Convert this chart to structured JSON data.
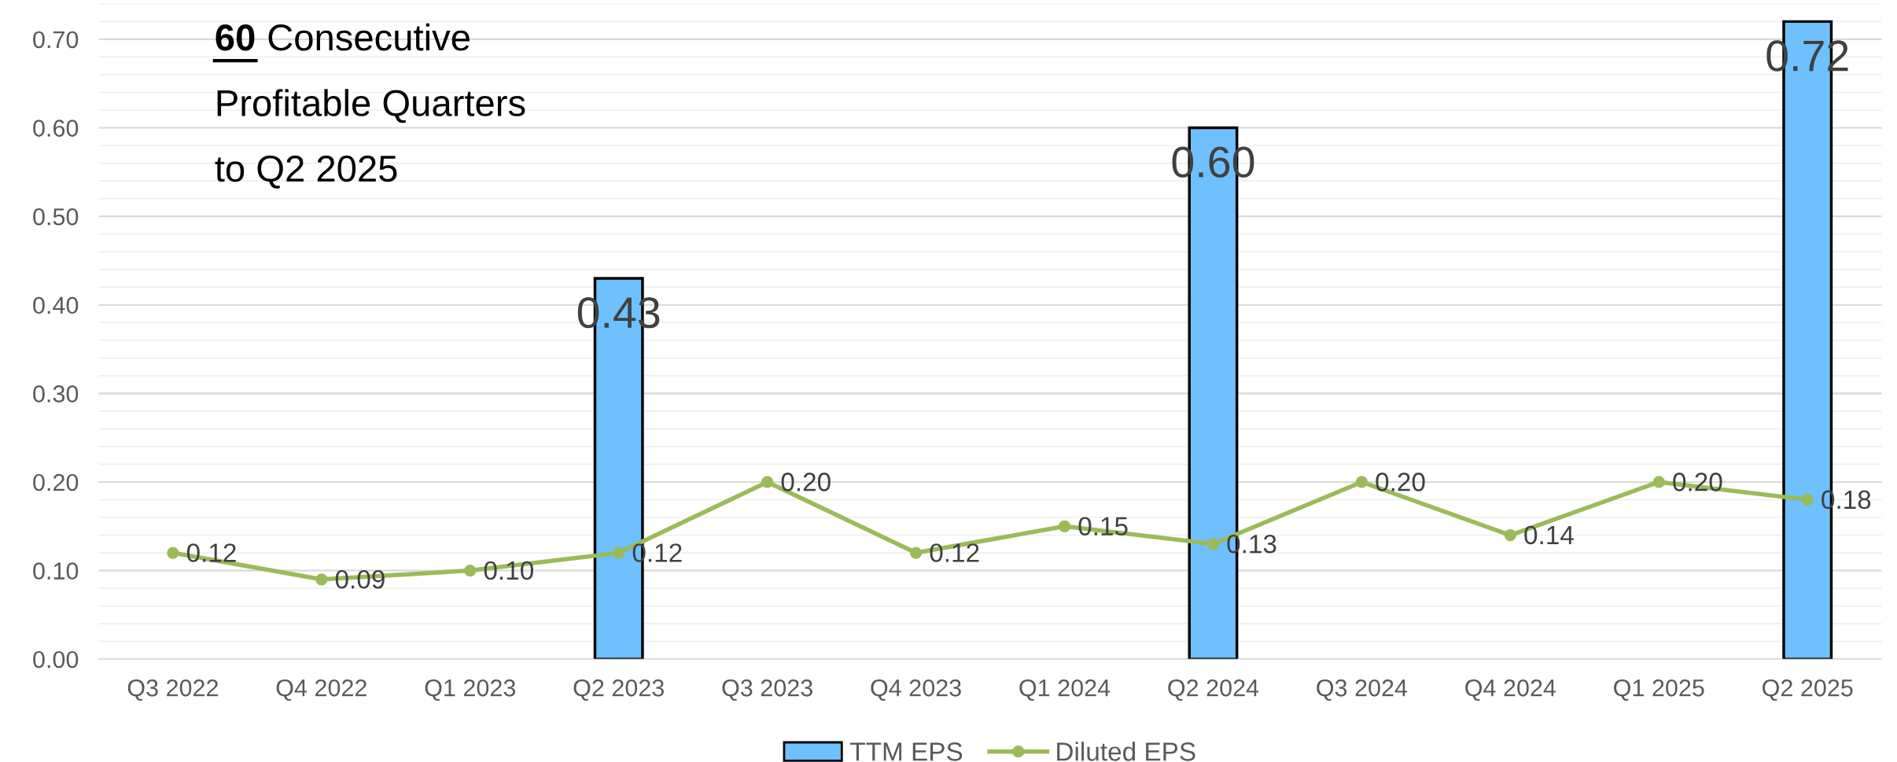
{
  "chart_data": {
    "type": "bar",
    "categories": [
      "Q3 2022",
      "Q4 2022",
      "Q1 2023",
      "Q2 2023",
      "Q3 2023",
      "Q4 2023",
      "Q1 2024",
      "Q2 2024",
      "Q3 2024",
      "Q4 2024",
      "Q1 2025",
      "Q2 2025"
    ],
    "series": [
      {
        "name": "TTM EPS",
        "color": "#6ec0ff",
        "values": [
          null,
          null,
          null,
          0.43,
          null,
          null,
          null,
          0.6,
          null,
          null,
          null,
          0.72
        ],
        "value_labels": [
          null,
          null,
          null,
          "0.43",
          null,
          null,
          null,
          "0.60",
          null,
          null,
          null,
          "0.72"
        ]
      },
      {
        "name": "Diluted EPS",
        "type": "line",
        "color": "#9bbb59",
        "values": [
          0.12,
          0.09,
          0.1,
          0.12,
          0.2,
          0.12,
          0.15,
          0.13,
          0.2,
          0.14,
          0.2,
          0.18
        ],
        "value_labels": [
          "0.12",
          "0.09",
          "0.10",
          "0.12",
          "0.20",
          "0.12",
          "0.15",
          "0.13",
          "0.20",
          "0.14",
          "0.20",
          "0.18"
        ]
      }
    ],
    "ylim": [
      0,
      0.74
    ],
    "yticks": [
      {
        "value": 0,
        "label": "0.00"
      },
      {
        "value": 0.1,
        "label": "0.10"
      },
      {
        "value": 0.2,
        "label": "0.20"
      },
      {
        "value": 0.3,
        "label": "0.30"
      },
      {
        "value": 0.4,
        "label": "0.40"
      },
      {
        "value": 0.5,
        "label": "0.50"
      },
      {
        "value": 0.6,
        "label": "0.60"
      },
      {
        "value": 0.7,
        "label": "0.70"
      }
    ],
    "grid": "y",
    "legend": "bottom",
    "marker": "circle",
    "annotations": [
      "60 Consecutive\nProfitable Quarters\nto Q2 2025"
    ]
  }
}
